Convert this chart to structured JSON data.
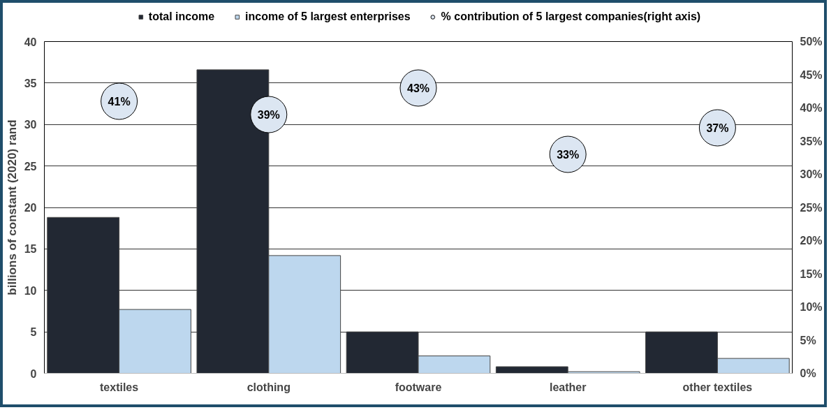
{
  "chart_data": {
    "type": "bar",
    "categories": [
      "textiles",
      "clothing",
      "footware",
      "leather",
      "other textiles"
    ],
    "ylabel": "billions of constant (2020) rand",
    "ylim": [
      0,
      40
    ],
    "yticks": [
      0,
      5,
      10,
      15,
      20,
      25,
      30,
      35,
      40
    ],
    "y2lim": [
      0,
      50
    ],
    "y2ticks": [
      {
        "value": 0,
        "label": "0%"
      },
      {
        "value": 5,
        "label": "5%"
      },
      {
        "value": 10,
        "label": "10%"
      },
      {
        "value": 15,
        "label": "15%"
      },
      {
        "value": 20,
        "label": "20%"
      },
      {
        "value": 25,
        "label": "25%"
      },
      {
        "value": 30,
        "label": "30%"
      },
      {
        "value": 35,
        "label": "35%"
      },
      {
        "value": 40,
        "label": "40%"
      },
      {
        "value": 45,
        "label": "45%"
      },
      {
        "value": 50,
        "label": "50%"
      }
    ],
    "grid": "y",
    "legend": "top",
    "series": [
      {
        "name": "total income",
        "color": "#222833",
        "values": [
          18.8,
          36.6,
          5.0,
          0.8,
          5.0
        ]
      },
      {
        "name": "income of 5 largest enterprises",
        "color": "#bdd7ee",
        "values": [
          7.7,
          14.2,
          2.1,
          0.2,
          1.8
        ]
      },
      {
        "name": "% contribution of 5 largest companies(right axis)",
        "type": "scatter",
        "axis": "y2",
        "color": "#dce6f2",
        "marker": "circle",
        "data_labels": true,
        "value_labels": [
          "41%",
          "39%",
          "43%",
          "33%",
          "37%"
        ],
        "values": [
          41,
          39,
          43,
          33,
          37
        ]
      }
    ]
  }
}
